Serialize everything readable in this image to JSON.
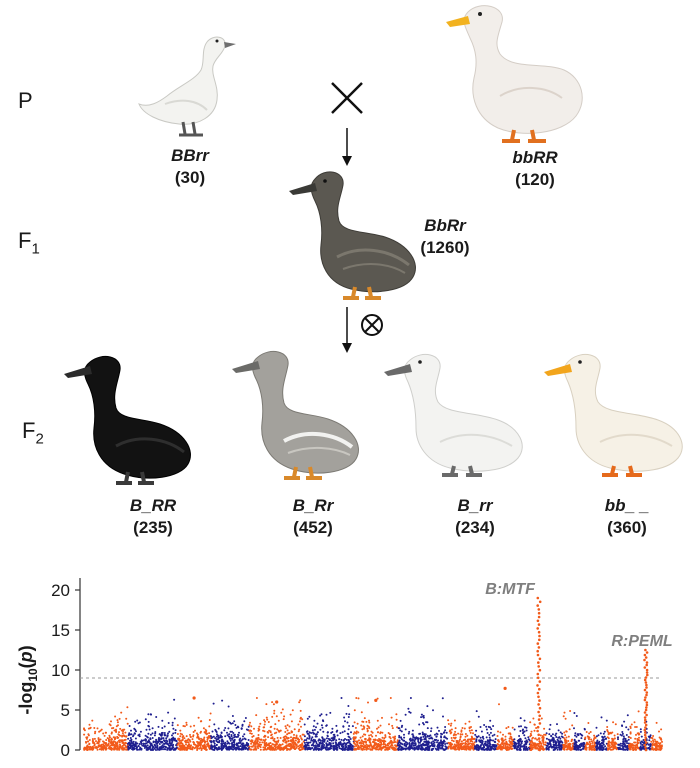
{
  "generations": {
    "p": "P",
    "f1_main": "F",
    "f1_sub": "1",
    "f2_main": "F",
    "f2_sub": "2"
  },
  "parents": [
    {
      "genotype": "BBrr",
      "count": "(30)",
      "color": "white-small"
    },
    {
      "genotype": "bbRR",
      "count": "(120)",
      "color": "white-large"
    }
  ],
  "f1": {
    "genotype": "BbRr",
    "count": "(1260)",
    "color": "grey-brown"
  },
  "f2": [
    {
      "genotype": "B_RR",
      "count": "(235)",
      "color": "black"
    },
    {
      "genotype": "B_Rr",
      "count": "(452)",
      "color": "grey"
    },
    {
      "genotype": "B_rr",
      "count": "(234)",
      "color": "white-dark-bill"
    },
    {
      "genotype": "bb_ _",
      "count": "(360)",
      "color": "white-orange-bill"
    }
  ],
  "symbols": {
    "cross": "cross-symbol",
    "self": "selfing-symbol"
  },
  "chart_data": {
    "type": "scatter",
    "subtype": "manhattan",
    "ylabel": "-log10(p)",
    "yticks": [
      0,
      5,
      10,
      15,
      20
    ],
    "ylim": [
      0,
      21
    ],
    "threshold": 9,
    "colors": {
      "odd": "#f25a1a",
      "even": "#1f1f8f",
      "threshold": "#9a9a9a",
      "annotation": "#7f7f7f"
    },
    "chromosomes": [
      {
        "len": 8,
        "base": 3.0
      },
      {
        "len": 9,
        "base": 3.0
      },
      {
        "len": 6,
        "base": 2.6
      },
      {
        "len": 7,
        "base": 3.2
      },
      {
        "len": 10,
        "base": 3.6
      },
      {
        "len": 9,
        "base": 3.0
      },
      {
        "len": 8,
        "base": 3.0
      },
      {
        "len": 9,
        "base": 3.0
      },
      {
        "len": 5,
        "base": 2.6
      },
      {
        "len": 4,
        "base": 2.6
      },
      {
        "len": 3,
        "base": 2.4
      },
      {
        "len": 3,
        "base": 2.4
      },
      {
        "len": 3,
        "base": 2.6
      },
      {
        "len": 3,
        "base": 2.4
      },
      {
        "len": 2,
        "base": 2.4
      },
      {
        "len": 2,
        "base": 2.4
      },
      {
        "len": 2,
        "base": 2.4
      },
      {
        "len": 2,
        "base": 2.4
      },
      {
        "len": 2,
        "base": 2.4
      },
      {
        "len": 2,
        "base": 2.4
      },
      {
        "len": 2,
        "base": 2.2
      },
      {
        "len": 2,
        "base": 2.2
      },
      {
        "len": 2,
        "base": 2.2
      }
    ],
    "peaks": [
      {
        "label": "B:MTF",
        "chrom": 13,
        "value": 19
      },
      {
        "label": "R:PEML",
        "chrom": 22,
        "value": 12.5
      }
    ],
    "notable_points": [
      {
        "chrom": 3,
        "value": 6.5
      },
      {
        "chrom": 5,
        "value": 6.0
      },
      {
        "chrom": 7,
        "value": 6.2
      },
      {
        "chrom": 11,
        "value": 7.7
      }
    ]
  }
}
